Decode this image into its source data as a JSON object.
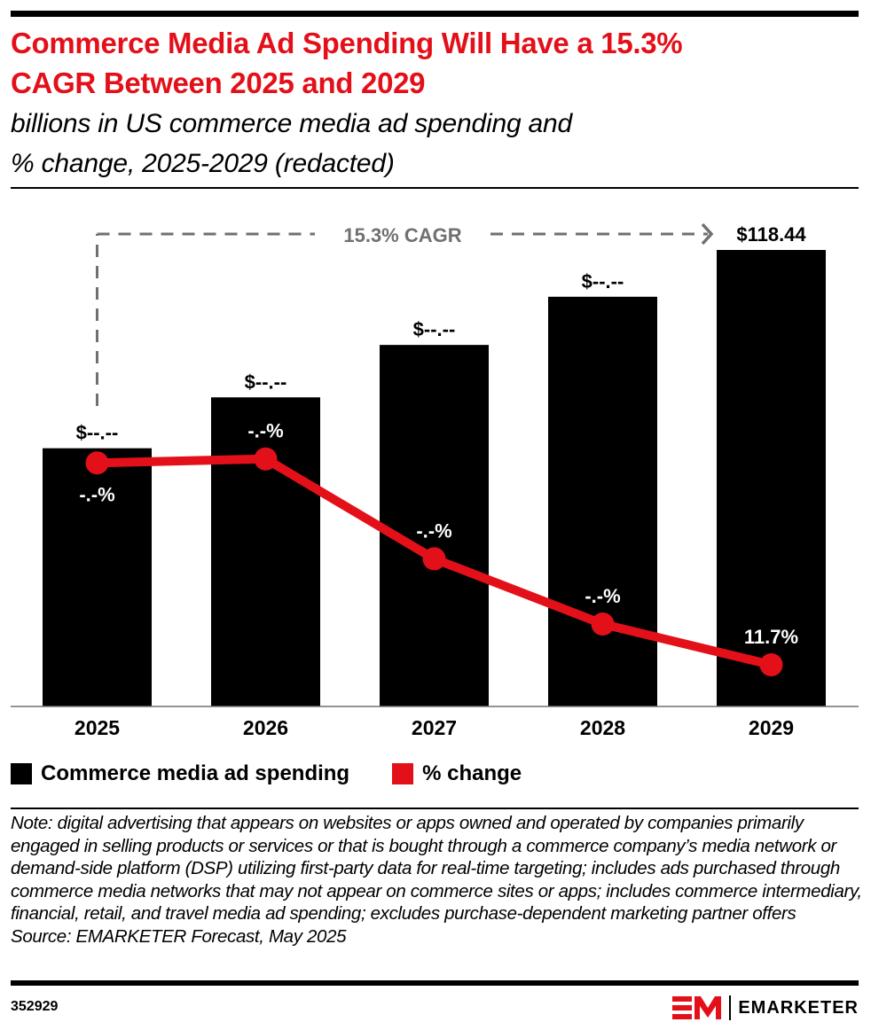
{
  "header": {
    "title_line1": "Commerce Media Ad Spending Will Have a 15.3%",
    "title_line2": "CAGR Between 2025 and 2029",
    "subtitle_line1": "billions in US commerce media ad spending and",
    "subtitle_line2": "% change, 2025-2029 (redacted)"
  },
  "colors": {
    "title": "#e3101a",
    "bar": "#000000",
    "line": "#e3101a",
    "annotation": "#707070",
    "axis": "#707070"
  },
  "chart_data": {
    "type": "bar",
    "title": "Commerce Media Ad Spending Will Have a 15.3% CAGR Between 2025 and 2029",
    "subtitle": "billions in US commerce media ad spending and % change, 2025-2029 (redacted)",
    "xlabel": "",
    "ylabel": "",
    "categories": [
      "2025",
      "2026",
      "2027",
      "2028",
      "2029"
    ],
    "grid": false,
    "legend_position": "bottom-left",
    "series": [
      {
        "name": "Commerce media ad spending",
        "type": "bar",
        "unit": "billions USD",
        "values": [
          null,
          null,
          null,
          null,
          118.44
        ],
        "approx_values_from_bar_heights": [
          67.0,
          80.2,
          93.8,
          106.3,
          118.44
        ],
        "labels": [
          "$--.--",
          "$--.--",
          "$--.--",
          "$--.--",
          "$118.44"
        ]
      },
      {
        "name": "% change",
        "type": "line",
        "unit": "%",
        "values": [
          null,
          null,
          null,
          null,
          11.7
        ],
        "approx_values_from_positions": [
          21.6,
          21.8,
          16.9,
          13.7,
          11.7
        ],
        "labels": [
          "-.-%",
          "-.-%",
          "-.-%",
          "-.-%",
          "11.7%"
        ],
        "label_placement": [
          "below",
          "above",
          "above",
          "above",
          "above"
        ]
      }
    ],
    "annotation": {
      "text": "15.3% CAGR",
      "from": "2025",
      "to": "2029",
      "style": "dashed-arrow"
    },
    "ylim_bar": [
      0,
      118.44
    ]
  },
  "legend": {
    "items": [
      {
        "label": "Commerce media ad spending",
        "color": "#000000"
      },
      {
        "label": "% change",
        "color": "#e3101a"
      }
    ]
  },
  "footer": {
    "note": "Note: digital advertising that appears on websites or apps owned and operated by companies primarily engaged in selling products or services or that is bought through a commerce company’s media network or demand-side platform (DSP) utilizing first-party data for real-time targeting; includes ads purchased through commerce media networks that may not appear on commerce sites or apps; includes commerce intermediary, financial, retail, and travel media ad spending; excludes purchase-dependent marketing partner offers",
    "source": "Source: EMARKETER Forecast, May 2025",
    "chart_id": "352929",
    "brand": "EMARKETER"
  }
}
